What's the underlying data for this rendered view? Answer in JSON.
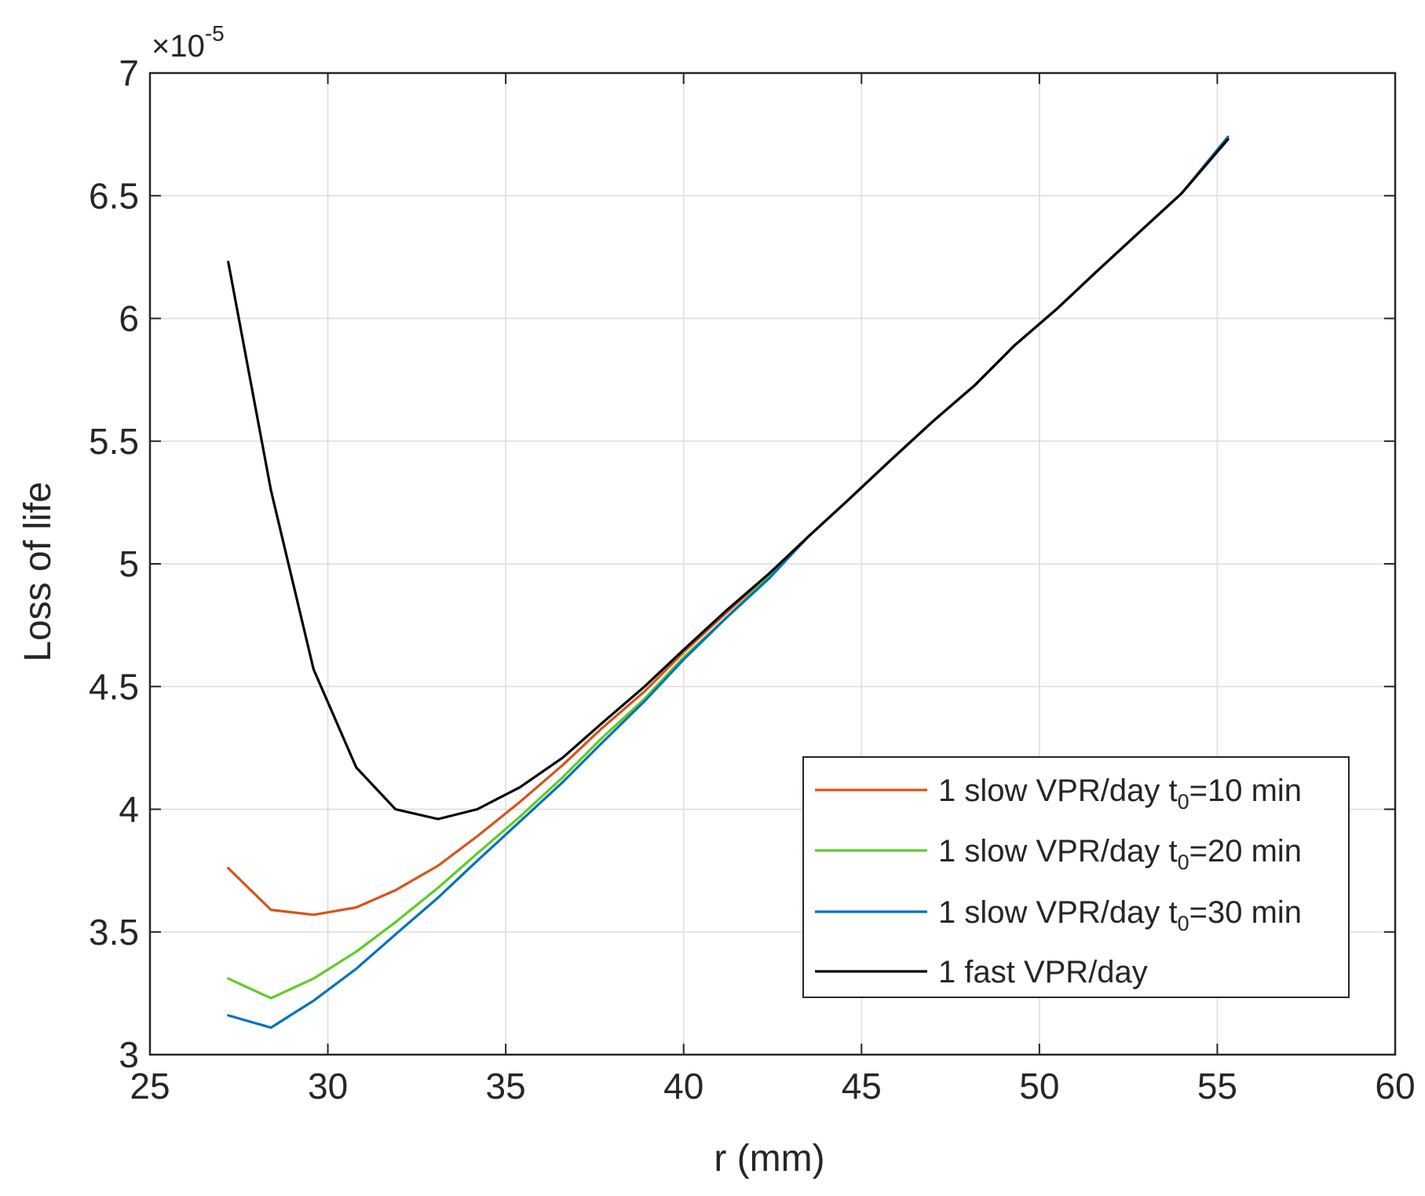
{
  "chart_data": {
    "type": "line",
    "title": "",
    "xlabel": "r (mm)",
    "ylabel": "Loss of life",
    "xlim": [
      25,
      60
    ],
    "ylim": [
      3,
      7
    ],
    "xticks": [
      25,
      30,
      35,
      40,
      45,
      50,
      55,
      60
    ],
    "yticks": [
      3,
      3.5,
      4,
      4.5,
      5,
      5.5,
      6,
      6.5,
      7
    ],
    "ytick_labels": [
      "3",
      "3.5",
      "4",
      "4.5",
      "5",
      "5.5",
      "6",
      "6.5",
      "7"
    ],
    "y_scale_multiplier": {
      "base": "×10",
      "exponent": "-5"
    },
    "grid": true,
    "legend_location": "lower-right",
    "x": [
      27.2,
      28.4,
      29.6,
      30.8,
      31.9,
      33.1,
      34.2,
      35.4,
      36.6,
      37.7,
      38.9,
      40.0,
      41.2,
      42.4,
      43.5,
      44.7,
      45.8,
      47.0,
      48.2,
      49.3,
      50.5,
      51.6,
      52.8,
      54.0,
      55.3
    ],
    "series": [
      {
        "name": "1 slow VPR/day t_0=10 min",
        "label_main": "1 slow VPR/day t",
        "label_sub": "0",
        "label_tail": "=10 min",
        "color": "#d95319",
        "values": [
          3.76,
          3.59,
          3.57,
          3.6,
          3.67,
          3.77,
          3.89,
          4.03,
          4.18,
          4.33,
          4.48,
          4.64,
          4.8,
          4.96,
          5.11,
          5.27,
          5.42,
          5.58,
          5.73,
          5.89,
          6.04,
          6.19,
          6.35,
          6.51,
          6.73
        ]
      },
      {
        "name": "1 slow VPR/day t_0=20 min",
        "label_main": "1 slow VPR/day t",
        "label_sub": "0",
        "label_tail": "=20 min",
        "color": "#5ecc28",
        "values": [
          3.31,
          3.23,
          3.31,
          3.42,
          3.54,
          3.68,
          3.82,
          3.97,
          4.13,
          4.29,
          4.45,
          4.62,
          4.78,
          4.95,
          5.11,
          5.27,
          5.42,
          5.58,
          5.73,
          5.89,
          6.04,
          6.19,
          6.35,
          6.51,
          6.74
        ]
      },
      {
        "name": "1 slow VPR/day t_0=30 min",
        "label_main": "1 slow VPR/day t",
        "label_sub": "0",
        "label_tail": "=30 min",
        "color": "#0072bd",
        "values": [
          3.16,
          3.11,
          3.22,
          3.35,
          3.49,
          3.64,
          3.79,
          3.95,
          4.11,
          4.27,
          4.44,
          4.61,
          4.78,
          4.94,
          5.11,
          5.27,
          5.42,
          5.58,
          5.73,
          5.89,
          6.04,
          6.19,
          6.35,
          6.51,
          6.74
        ]
      },
      {
        "name": "1 fast VPR/day",
        "label_main": "1 fast VPR/day",
        "label_sub": "",
        "label_tail": "",
        "color": "#000000",
        "values": [
          6.23,
          5.3,
          4.57,
          4.17,
          4.0,
          3.96,
          4.0,
          4.09,
          4.21,
          4.35,
          4.5,
          4.65,
          4.81,
          4.96,
          5.11,
          5.27,
          5.42,
          5.58,
          5.73,
          5.89,
          6.04,
          6.19,
          6.35,
          6.51,
          6.73
        ]
      }
    ]
  }
}
